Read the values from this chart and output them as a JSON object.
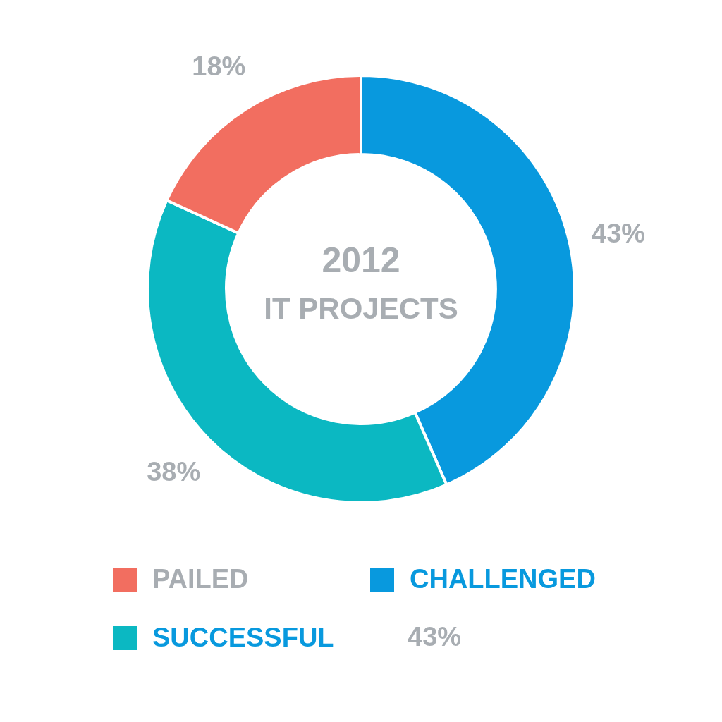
{
  "chart_data": {
    "type": "donut",
    "title": "2012",
    "subtitle": "IT PROJECTS",
    "categories": [
      "CHALLENGED",
      "SUCCESSFUL",
      "PAILED"
    ],
    "values": [
      43,
      38,
      18
    ],
    "colors": [
      "#0899de",
      "#0bb8c2",
      "#f26e60"
    ],
    "value_labels": [
      "43%",
      "38%",
      "18%"
    ],
    "legend": "bottom",
    "annotations": [
      "43%"
    ]
  }
}
